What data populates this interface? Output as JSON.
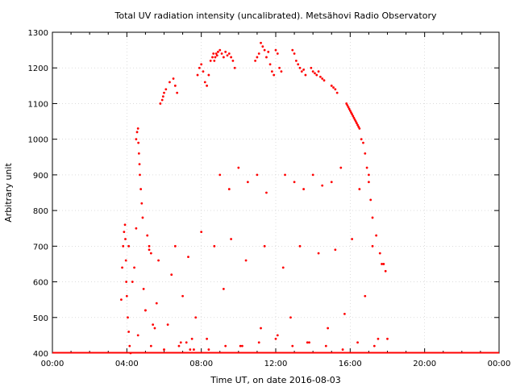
{
  "chart_data": {
    "type": "scatter",
    "title": "Total UV radiation intensity (uncalibrated). Metsähovi Radio Observatory",
    "xlabel": "Time UT, on date 2016-08-03",
    "ylabel": "Arbitrary unit",
    "xlim": [
      "00:00",
      "24:00"
    ],
    "ylim": [
      400,
      1300
    ],
    "x_ticks": [
      "00:00",
      "04:00",
      "08:00",
      "12:00",
      "16:00",
      "20:00",
      "00:00"
    ],
    "y_ticks": [
      "400",
      "500",
      "600",
      "700",
      "800",
      "900",
      "1000",
      "1100",
      "1200",
      "1300"
    ],
    "grid": true,
    "point_color": "#ff0000",
    "baseline": {
      "value": 400,
      "x_start": "00:00",
      "x_end": "24:00"
    },
    "series": [
      {
        "name": "",
        "x_hours": [
          3.7,
          3.75,
          3.8,
          3.85,
          3.9,
          3.92,
          3.95,
          3.97,
          4.0,
          4.05,
          4.1,
          4.15,
          4.5,
          4.55,
          4.6,
          4.62,
          4.65,
          4.68,
          4.7,
          4.75,
          4.8,
          4.85,
          5.1,
          5.2,
          5.3,
          5.8,
          5.9,
          5.95,
          6.0,
          6.1,
          6.3,
          6.5,
          6.6,
          6.7,
          7.8,
          7.9,
          8.0,
          8.1,
          8.2,
          8.3,
          8.4,
          8.5,
          8.6,
          8.65,
          8.7,
          8.75,
          8.8,
          8.85,
          8.9,
          9.0,
          9.1,
          9.2,
          9.3,
          9.4,
          9.5,
          9.6,
          9.7,
          9.8,
          10.9,
          11.0,
          11.1,
          11.2,
          11.3,
          11.4,
          11.5,
          11.6,
          11.7,
          11.8,
          11.9,
          12.0,
          12.1,
          12.2,
          12.3,
          12.9,
          13.0,
          13.1,
          13.2,
          13.3,
          13.4,
          13.5,
          13.6,
          13.9,
          14.0,
          14.1,
          14.2,
          14.3,
          14.4,
          14.5,
          14.6,
          15.0,
          15.1,
          15.2,
          15.3,
          15.8,
          15.85,
          15.9,
          15.95,
          16.0,
          16.05,
          16.1,
          16.15,
          16.2,
          16.25,
          16.3,
          16.35,
          16.4,
          16.45,
          16.5,
          16.6,
          16.7,
          16.8,
          16.9,
          17.0,
          17.1,
          17.2,
          17.4,
          17.6,
          17.8,
          17.9,
          18.0,
          4.2,
          4.4,
          4.9,
          5.0,
          5.5,
          5.6,
          6.2,
          6.8,
          7.2,
          7.4,
          7.6,
          9.0,
          9.5,
          10.0,
          10.5,
          11.0,
          11.5,
          12.5,
          13.0,
          13.5,
          14.0,
          14.5,
          15.0,
          15.5,
          16.5,
          17.0,
          4.3,
          5.0,
          5.4,
          6.4,
          7.0,
          7.7,
          8.3,
          9.2,
          10.2,
          11.2,
          12.1,
          12.8,
          13.7,
          14.8,
          15.7,
          16.8,
          17.5,
          4.1,
          4.5,
          5.2,
          5.7,
          6.6,
          7.3,
          8.0,
          8.7,
          9.6,
          10.4,
          11.4,
          12.4,
          13.3,
          14.3,
          15.2,
          16.1,
          17.2,
          17.7,
          4.6,
          5.3,
          6.0,
          6.9,
          7.5,
          8.4,
          9.3,
          10.1,
          11.1,
          12.0,
          12.9,
          13.8,
          14.7,
          15.6,
          16.4,
          17.3
        ],
        "y": [
          550,
          640,
          700,
          740,
          760,
          720,
          660,
          600,
          560,
          500,
          460,
          420,
          1000,
          1020,
          1030,
          990,
          960,
          930,
          900,
          860,
          820,
          780,
          730,
          700,
          680,
          1100,
          1110,
          1120,
          1130,
          1140,
          1160,
          1170,
          1150,
          1130,
          1180,
          1200,
          1210,
          1190,
          1160,
          1150,
          1180,
          1220,
          1230,
          1240,
          1220,
          1230,
          1240,
          1235,
          1245,
          1250,
          1240,
          1230,
          1245,
          1235,
          1240,
          1230,
          1220,
          1200,
          1220,
          1230,
          1240,
          1270,
          1260,
          1250,
          1230,
          1245,
          1210,
          1190,
          1180,
          1250,
          1240,
          1200,
          1190,
          1250,
          1240,
          1220,
          1210,
          1200,
          1190,
          1195,
          1180,
          1200,
          1190,
          1185,
          1180,
          1190,
          1175,
          1170,
          1165,
          1150,
          1145,
          1140,
          1130,
          1100,
          1095,
          1090,
          1085,
          1080,
          1075,
          1070,
          1065,
          1060,
          1055,
          1050,
          1045,
          1040,
          1035,
          1030,
          1000,
          990,
          960,
          920,
          880,
          830,
          780,
          730,
          680,
          650,
          630,
          440,
          400,
          640,
          580,
          520,
          470,
          540,
          480,
          420,
          430,
          410,
          410,
          900,
          860,
          920,
          880,
          900,
          850,
          900,
          880,
          860,
          900,
          870,
          880,
          920,
          860,
          900,
          600,
          520,
          480,
          620,
          560,
          500,
          440,
          580,
          420,
          470,
          450,
          500,
          430,
          470,
          510,
          560,
          440,
          700,
          750,
          690,
          660,
          700,
          670,
          740,
          700,
          720,
          660,
          700,
          640,
          700,
          680,
          690,
          720,
          700,
          650,
          450,
          420,
          410,
          430,
          440,
          410,
          420,
          420,
          430,
          440,
          420,
          430,
          420,
          410,
          430,
          420
        ]
      }
    ]
  }
}
